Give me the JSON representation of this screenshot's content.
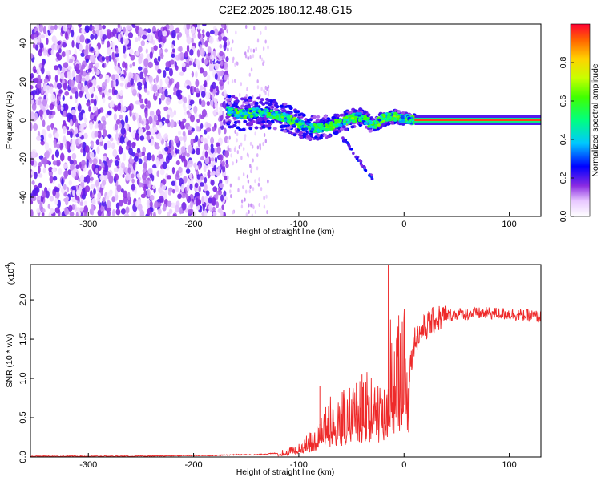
{
  "title": "C2E2.2025.180.12.48.G15",
  "chart_data": [
    {
      "type": "heatmap",
      "xlabel": "Height of straight line (km)",
      "ylabel": "Frequency (Hz)",
      "xlim": [
        -355,
        130
      ],
      "ylim": [
        -50,
        50
      ],
      "xticks": [
        "-300",
        "-200",
        "-100",
        "0",
        "100"
      ],
      "xtick_values": [
        -300,
        -200,
        -100,
        0,
        100
      ],
      "yticks": [
        "-40",
        "-20",
        "0",
        "20",
        "40"
      ],
      "ytick_values": [
        -40,
        -20,
        0,
        20,
        40
      ],
      "colorbar": {
        "label": "Normalized spectral amplitude",
        "range": [
          0,
          1
        ],
        "ticks": [
          "0.0",
          "0.2",
          "0.4",
          "0.6",
          "0.8"
        ],
        "tick_values": [
          0.0,
          0.2,
          0.4,
          0.6,
          0.8
        ],
        "colormap": "rainbow"
      },
      "regions": [
        {
          "x_range": [
            -355,
            -168
          ],
          "freq_range": [
            -50,
            50
          ],
          "amplitude": 0.15
        },
        {
          "x_range": [
            -168,
            10
          ],
          "freq_range": [
            -10,
            12
          ],
          "amplitude": 0.45
        },
        {
          "x_range": [
            10,
            130
          ],
          "freq_range": [
            -1,
            1
          ],
          "amplitude": 0.95
        }
      ],
      "ridge": {
        "x": [
          -168,
          -155,
          -140,
          -125,
          -110,
          -100,
          -90,
          -80,
          -70,
          -60,
          -50,
          -40,
          -30,
          -20,
          -10,
          0,
          10,
          130
        ],
        "freq": [
          5,
          3,
          4,
          3,
          1,
          -2,
          -4,
          -4,
          -3,
          -1,
          1,
          2,
          -3,
          1,
          2,
          1,
          0,
          0
        ]
      }
    },
    {
      "type": "line",
      "xlabel": "Height of straight line (km)",
      "ylabel": "SNR (10 * v/v)",
      "yscale_label": "(x10",
      "yscale_exp": "4",
      "multiplier": 10000,
      "xlim": [
        -355,
        130
      ],
      "ylim": [
        0,
        2.45
      ],
      "xticks": [
        "-300",
        "-200",
        "-100",
        "0",
        "100"
      ],
      "xtick_values": [
        -300,
        -200,
        -100,
        0,
        100
      ],
      "yticks": [
        "0.0",
        "0.5",
        "1.0",
        "1.5",
        "2.0"
      ],
      "ytick_values": [
        0.0,
        0.5,
        1.0,
        1.5,
        2.0
      ],
      "color": "#ee2a2a",
      "series": [
        {
          "x": [
            -355,
            -300,
            -250,
            -200,
            -180,
            -160,
            -140,
            -120,
            -110,
            -100,
            -90,
            -80,
            -75,
            -70,
            -60,
            -50,
            -40,
            -35,
            -30,
            -25,
            -20,
            -16,
            -14,
            -12,
            -8,
            -4,
            0,
            5,
            10,
            20,
            30,
            40,
            50,
            60,
            80,
            100,
            120,
            130
          ],
          "y": [
            0.01,
            0.01,
            0.01,
            0.02,
            0.02,
            0.03,
            0.03,
            0.05,
            0.07,
            0.12,
            0.2,
            0.35,
            0.45,
            0.5,
            0.55,
            0.6,
            0.65,
            0.7,
            0.8,
            0.7,
            0.6,
            0.75,
            1.25,
            1.05,
            1.1,
            1.2,
            1.25,
            1.1,
            1.5,
            1.65,
            1.75,
            1.8,
            1.82,
            1.82,
            1.83,
            1.82,
            1.8,
            1.78
          ]
        }
      ],
      "spikes": [
        {
          "x": -15,
          "y": 2.45
        },
        {
          "x": -80,
          "y": 0.9
        },
        {
          "x": -40,
          "y": 1.05
        }
      ]
    }
  ]
}
